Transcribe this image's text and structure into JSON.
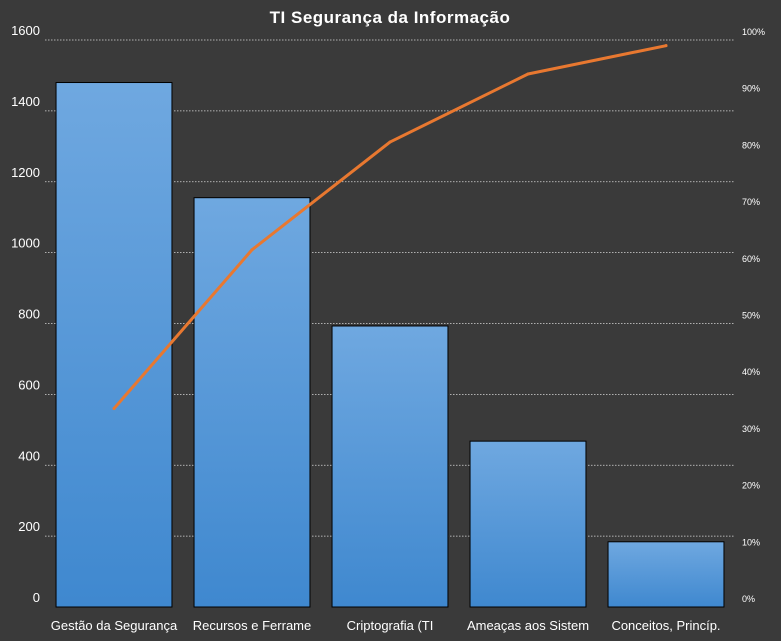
{
  "chart_data": {
    "type": "bar",
    "title": "TI Segurança da Informação",
    "categories": [
      "Gestão da Segurança",
      "Recursos e Ferrame",
      "Criptografia (TI",
      "Ameaças aos Sistem",
      "Conceitos, Princíp."
    ],
    "series": [
      {
        "type": "bar",
        "axis": "left",
        "values": [
          1480,
          1155,
          793,
          468,
          184
        ]
      },
      {
        "type": "line",
        "axis": "right",
        "values": [
          35,
          63,
          82,
          94,
          99
        ]
      }
    ],
    "y_left": {
      "min": 0,
      "max": 1600,
      "ticks": [
        "0",
        "200",
        "400",
        "600",
        "800",
        "1000",
        "1200",
        "1400",
        "1600"
      ]
    },
    "y_right": {
      "min": 0,
      "max": 100,
      "ticks": [
        "0%",
        "10%",
        "20%",
        "30%",
        "40%",
        "50%",
        "60%",
        "70%",
        "80%",
        "90%",
        "100%"
      ]
    },
    "grid": true,
    "legend": false,
    "colors": {
      "background": "#3a3a3a",
      "bar_top": "#6fa8e0",
      "bar_bottom": "#3f88cf",
      "line": "#e87830",
      "grid": "#d8d8d8",
      "text": "#ffffff"
    }
  }
}
